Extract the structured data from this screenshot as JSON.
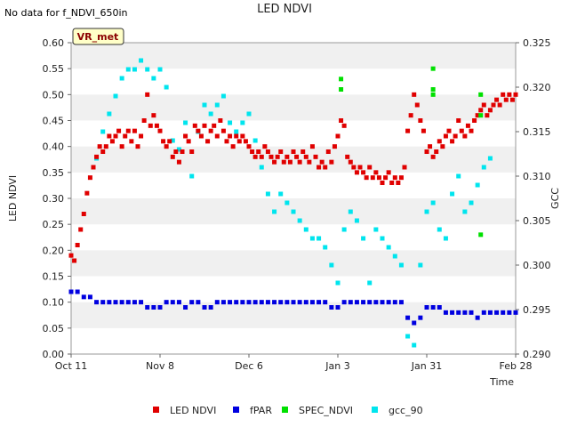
{
  "header": {
    "note": "No data for f_NDVI_650in",
    "title": "LED NDVI"
  },
  "badge": {
    "label": "VR_met"
  },
  "chart_data": {
    "type": "scatter",
    "title": "LED NDVI",
    "xlabel": "Time",
    "ylabel": "LED NDVI",
    "y2label": "GCC",
    "xlim": [
      0,
      140
    ],
    "ylim": [
      0,
      0.6
    ],
    "y2lim": [
      0.29,
      0.325
    ],
    "x_ticks": [
      {
        "x": 0,
        "label": "Oct 11"
      },
      {
        "x": 28,
        "label": "Nov 8"
      },
      {
        "x": 56,
        "label": "Dec 6"
      },
      {
        "x": 84,
        "label": "Jan 3"
      },
      {
        "x": 112,
        "label": "Jan 31"
      },
      {
        "x": 140,
        "label": "Feb 28"
      }
    ],
    "y_ticks": [
      0.0,
      0.05,
      0.1,
      0.15,
      0.2,
      0.25,
      0.3,
      0.35,
      0.4,
      0.45,
      0.5,
      0.55,
      0.6
    ],
    "y_tick_labels": [
      "0.00",
      "0.05",
      "0.10",
      "0.15",
      "0.20",
      "0.25",
      "0.30",
      "0.35",
      "0.40",
      "0.45",
      "0.50",
      "0.55",
      "0.60"
    ],
    "y2_ticks": [
      0.29,
      0.295,
      0.3,
      0.305,
      0.31,
      0.315,
      0.32,
      0.325
    ],
    "y2_tick_labels": [
      "0.290",
      "0.295",
      "0.300",
      "0.305",
      "0.310",
      "0.315",
      "0.320",
      "0.325"
    ],
    "legend_position": "bottom",
    "series": [
      {
        "name": "LED NDVI",
        "color": "#e00000",
        "axis": "left",
        "points": [
          [
            0,
            0.19
          ],
          [
            1,
            0.18
          ],
          [
            2,
            0.21
          ],
          [
            3,
            0.24
          ],
          [
            4,
            0.27
          ],
          [
            5,
            0.31
          ],
          [
            6,
            0.34
          ],
          [
            7,
            0.36
          ],
          [
            8,
            0.38
          ],
          [
            9,
            0.4
          ],
          [
            10,
            0.39
          ],
          [
            11,
            0.4
          ],
          [
            12,
            0.42
          ],
          [
            13,
            0.41
          ],
          [
            14,
            0.42
          ],
          [
            15,
            0.43
          ],
          [
            16,
            0.4
          ],
          [
            17,
            0.42
          ],
          [
            18,
            0.43
          ],
          [
            19,
            0.41
          ],
          [
            20,
            0.43
          ],
          [
            21,
            0.4
          ],
          [
            22,
            0.42
          ],
          [
            23,
            0.45
          ],
          [
            24,
            0.5
          ],
          [
            25,
            0.44
          ],
          [
            26,
            0.46
          ],
          [
            27,
            0.44
          ],
          [
            28,
            0.43
          ],
          [
            29,
            0.41
          ],
          [
            30,
            0.4
          ],
          [
            31,
            0.41
          ],
          [
            32,
            0.38
          ],
          [
            33,
            0.39
          ],
          [
            34,
            0.37
          ],
          [
            35,
            0.39
          ],
          [
            36,
            0.42
          ],
          [
            37,
            0.41
          ],
          [
            38,
            0.39
          ],
          [
            39,
            0.44
          ],
          [
            40,
            0.43
          ],
          [
            41,
            0.42
          ],
          [
            42,
            0.44
          ],
          [
            43,
            0.41
          ],
          [
            44,
            0.43
          ],
          [
            45,
            0.44
          ],
          [
            46,
            0.42
          ],
          [
            47,
            0.45
          ],
          [
            48,
            0.43
          ],
          [
            49,
            0.41
          ],
          [
            50,
            0.42
          ],
          [
            51,
            0.4
          ],
          [
            52,
            0.42
          ],
          [
            53,
            0.41
          ],
          [
            54,
            0.42
          ],
          [
            55,
            0.41
          ],
          [
            56,
            0.4
          ],
          [
            57,
            0.39
          ],
          [
            58,
            0.38
          ],
          [
            59,
            0.39
          ],
          [
            60,
            0.38
          ],
          [
            61,
            0.4
          ],
          [
            62,
            0.39
          ],
          [
            63,
            0.38
          ],
          [
            64,
            0.37
          ],
          [
            65,
            0.38
          ],
          [
            66,
            0.39
          ],
          [
            67,
            0.37
          ],
          [
            68,
            0.38
          ],
          [
            69,
            0.37
          ],
          [
            70,
            0.39
          ],
          [
            71,
            0.38
          ],
          [
            72,
            0.37
          ],
          [
            73,
            0.39
          ],
          [
            74,
            0.38
          ],
          [
            75,
            0.37
          ],
          [
            76,
            0.4
          ],
          [
            77,
            0.38
          ],
          [
            78,
            0.36
          ],
          [
            79,
            0.37
          ],
          [
            80,
            0.36
          ],
          [
            81,
            0.39
          ],
          [
            82,
            0.37
          ],
          [
            83,
            0.4
          ],
          [
            84,
            0.42
          ],
          [
            85,
            0.45
          ],
          [
            86,
            0.44
          ],
          [
            87,
            0.38
          ],
          [
            88,
            0.37
          ],
          [
            89,
            0.36
          ],
          [
            90,
            0.35
          ],
          [
            91,
            0.36
          ],
          [
            92,
            0.35
          ],
          [
            93,
            0.34
          ],
          [
            94,
            0.36
          ],
          [
            95,
            0.34
          ],
          [
            96,
            0.35
          ],
          [
            97,
            0.34
          ],
          [
            98,
            0.33
          ],
          [
            99,
            0.34
          ],
          [
            100,
            0.35
          ],
          [
            101,
            0.33
          ],
          [
            102,
            0.34
          ],
          [
            103,
            0.33
          ],
          [
            104,
            0.34
          ],
          [
            105,
            0.36
          ],
          [
            106,
            0.43
          ],
          [
            107,
            0.46
          ],
          [
            108,
            0.5
          ],
          [
            109,
            0.48
          ],
          [
            110,
            0.45
          ],
          [
            111,
            0.43
          ],
          [
            112,
            0.39
          ],
          [
            113,
            0.4
          ],
          [
            114,
            0.38
          ],
          [
            115,
            0.39
          ],
          [
            116,
            0.41
          ],
          [
            117,
            0.4
          ],
          [
            118,
            0.42
          ],
          [
            119,
            0.43
          ],
          [
            120,
            0.41
          ],
          [
            121,
            0.42
          ],
          [
            122,
            0.45
          ],
          [
            123,
            0.43
          ],
          [
            124,
            0.42
          ],
          [
            125,
            0.44
          ],
          [
            126,
            0.43
          ],
          [
            127,
            0.45
          ],
          [
            128,
            0.46
          ],
          [
            129,
            0.47
          ],
          [
            130,
            0.48
          ],
          [
            131,
            0.46
          ],
          [
            132,
            0.47
          ],
          [
            133,
            0.48
          ],
          [
            134,
            0.49
          ],
          [
            135,
            0.48
          ],
          [
            136,
            0.5
          ],
          [
            137,
            0.49
          ],
          [
            138,
            0.5
          ],
          [
            139,
            0.49
          ],
          [
            140,
            0.5
          ]
        ]
      },
      {
        "name": "fPAR",
        "color": "#0000e0",
        "axis": "left",
        "points": [
          [
            0,
            0.12
          ],
          [
            2,
            0.12
          ],
          [
            4,
            0.11
          ],
          [
            6,
            0.11
          ],
          [
            8,
            0.1
          ],
          [
            10,
            0.1
          ],
          [
            12,
            0.1
          ],
          [
            14,
            0.1
          ],
          [
            16,
            0.1
          ],
          [
            18,
            0.1
          ],
          [
            20,
            0.1
          ],
          [
            22,
            0.1
          ],
          [
            24,
            0.09
          ],
          [
            26,
            0.09
          ],
          [
            28,
            0.09
          ],
          [
            30,
            0.1
          ],
          [
            32,
            0.1
          ],
          [
            34,
            0.1
          ],
          [
            36,
            0.09
          ],
          [
            38,
            0.1
          ],
          [
            40,
            0.1
          ],
          [
            42,
            0.09
          ],
          [
            44,
            0.09
          ],
          [
            46,
            0.1
          ],
          [
            48,
            0.1
          ],
          [
            50,
            0.1
          ],
          [
            52,
            0.1
          ],
          [
            54,
            0.1
          ],
          [
            56,
            0.1
          ],
          [
            58,
            0.1
          ],
          [
            60,
            0.1
          ],
          [
            62,
            0.1
          ],
          [
            64,
            0.1
          ],
          [
            66,
            0.1
          ],
          [
            68,
            0.1
          ],
          [
            70,
            0.1
          ],
          [
            72,
            0.1
          ],
          [
            74,
            0.1
          ],
          [
            76,
            0.1
          ],
          [
            78,
            0.1
          ],
          [
            80,
            0.1
          ],
          [
            82,
            0.09
          ],
          [
            84,
            0.09
          ],
          [
            86,
            0.1
          ],
          [
            88,
            0.1
          ],
          [
            90,
            0.1
          ],
          [
            92,
            0.1
          ],
          [
            94,
            0.1
          ],
          [
            96,
            0.1
          ],
          [
            98,
            0.1
          ],
          [
            100,
            0.1
          ],
          [
            102,
            0.1
          ],
          [
            104,
            0.1
          ],
          [
            106,
            0.07
          ],
          [
            108,
            0.06
          ],
          [
            110,
            0.07
          ],
          [
            112,
            0.09
          ],
          [
            114,
            0.09
          ],
          [
            116,
            0.09
          ],
          [
            118,
            0.08
          ],
          [
            120,
            0.08
          ],
          [
            122,
            0.08
          ],
          [
            124,
            0.08
          ],
          [
            126,
            0.08
          ],
          [
            128,
            0.07
          ],
          [
            130,
            0.08
          ],
          [
            132,
            0.08
          ],
          [
            134,
            0.08
          ],
          [
            136,
            0.08
          ],
          [
            138,
            0.08
          ],
          [
            140,
            0.08
          ]
        ]
      },
      {
        "name": "SPEC_NDVI",
        "color": "#00e000",
        "axis": "left",
        "points": [
          [
            85,
            0.53
          ],
          [
            85,
            0.51
          ],
          [
            114,
            0.55
          ],
          [
            114,
            0.51
          ],
          [
            114,
            0.5
          ],
          [
            129,
            0.5
          ],
          [
            129,
            0.46
          ],
          [
            129,
            0.23
          ]
        ]
      },
      {
        "name": "gcc_90",
        "color": "#00e5ee",
        "axis": "right",
        "points": [
          [
            8,
            0.312
          ],
          [
            10,
            0.315
          ],
          [
            12,
            0.317
          ],
          [
            14,
            0.319
          ],
          [
            16,
            0.321
          ],
          [
            18,
            0.322
          ],
          [
            20,
            0.322
          ],
          [
            22,
            0.323
          ],
          [
            24,
            0.322
          ],
          [
            26,
            0.321
          ],
          [
            28,
            0.322
          ],
          [
            30,
            0.32
          ],
          [
            32,
            0.314
          ],
          [
            34,
            0.313
          ],
          [
            36,
            0.316
          ],
          [
            38,
            0.31
          ],
          [
            40,
            0.315
          ],
          [
            42,
            0.318
          ],
          [
            44,
            0.317
          ],
          [
            46,
            0.318
          ],
          [
            48,
            0.319
          ],
          [
            50,
            0.316
          ],
          [
            52,
            0.315
          ],
          [
            54,
            0.316
          ],
          [
            56,
            0.317
          ],
          [
            58,
            0.314
          ],
          [
            60,
            0.311
          ],
          [
            62,
            0.308
          ],
          [
            64,
            0.306
          ],
          [
            66,
            0.308
          ],
          [
            68,
            0.307
          ],
          [
            70,
            0.306
          ],
          [
            72,
            0.305
          ],
          [
            74,
            0.304
          ],
          [
            76,
            0.303
          ],
          [
            78,
            0.303
          ],
          [
            80,
            0.302
          ],
          [
            82,
            0.3
          ],
          [
            84,
            0.298
          ],
          [
            86,
            0.304
          ],
          [
            88,
            0.306
          ],
          [
            90,
            0.305
          ],
          [
            92,
            0.303
          ],
          [
            94,
            0.298
          ],
          [
            96,
            0.304
          ],
          [
            98,
            0.303
          ],
          [
            100,
            0.302
          ],
          [
            102,
            0.301
          ],
          [
            104,
            0.3
          ],
          [
            106,
            0.292
          ],
          [
            108,
            0.291
          ],
          [
            110,
            0.3
          ],
          [
            112,
            0.306
          ],
          [
            114,
            0.307
          ],
          [
            116,
            0.304
          ],
          [
            118,
            0.303
          ],
          [
            120,
            0.308
          ],
          [
            122,
            0.31
          ],
          [
            124,
            0.306
          ],
          [
            126,
            0.307
          ],
          [
            128,
            0.309
          ],
          [
            130,
            0.311
          ],
          [
            132,
            0.312
          ]
        ]
      }
    ]
  }
}
